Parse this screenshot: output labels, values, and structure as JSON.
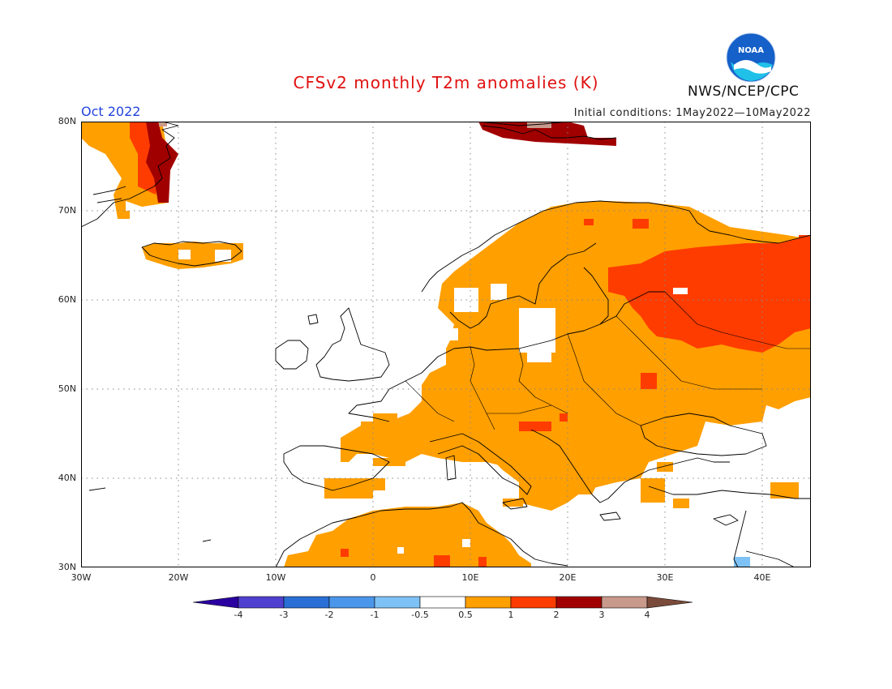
{
  "title": "CFSv2 monthly T2m anomalies (K)",
  "valid_month": "Oct 2022",
  "initial_conditions": "Initial conditions: 1May2022—10May2022",
  "agency": "NWS/NCEP/CPC",
  "logo_text": "NOAA",
  "icons": {
    "logo": "noaa-logo"
  },
  "map": {
    "lon_range": [
      -30,
      45
    ],
    "lat_range": [
      30,
      80
    ],
    "lon_ticks": [
      "30W",
      "20W",
      "10W",
      "0",
      "10E",
      "20E",
      "30E",
      "40E"
    ],
    "lat_ticks": [
      "80N",
      "70N",
      "60N",
      "50N",
      "40N",
      "30N"
    ],
    "gridlines": "dotted",
    "ocean_color": "#ffffff",
    "coastline_color": "#000000"
  },
  "colorbar": {
    "labels": [
      "-4",
      "-3",
      "-2",
      "-1",
      "-0.5",
      "0.5",
      "1",
      "2",
      "3",
      "4"
    ],
    "colors": [
      "#2a00a0",
      "#5040d0",
      "#2a6fd6",
      "#4a96ea",
      "#7ec1f4",
      "#ffffff",
      "#ff9f00",
      "#ff3c00",
      "#a10000",
      "#c89a8c",
      "#7a4a3a"
    ]
  },
  "anomaly_regions": [
    {
      "name": "europe-mainland",
      "category": "0.5 to 1",
      "color": "#ff9f00"
    },
    {
      "name": "western-russia",
      "category": "1 to 2",
      "color": "#ff3c00"
    },
    {
      "name": "greenland-coast",
      "category": "2 to 3",
      "color": "#a10000"
    },
    {
      "name": "svalbard",
      "category": "2 to 3",
      "color": "#a10000"
    },
    {
      "name": "iceland",
      "category": "0.5 to 1",
      "color": "#ff9f00"
    },
    {
      "name": "north-africa",
      "category": "0.5 to 1",
      "color": "#ff9f00"
    },
    {
      "name": "levant-cold-spot",
      "category": "-1 to -0.5",
      "color": "#7ec1f4"
    }
  ]
}
